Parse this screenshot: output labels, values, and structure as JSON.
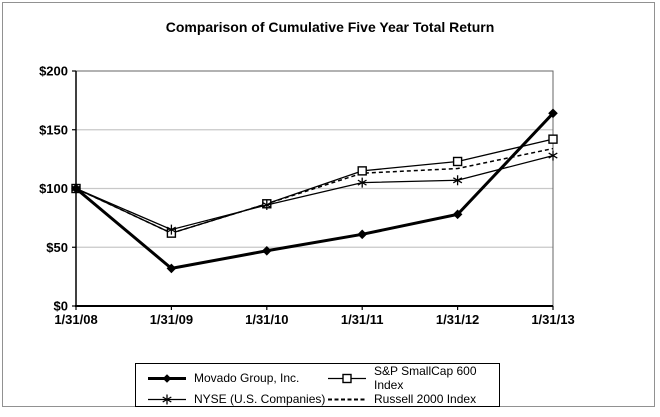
{
  "chart_data": {
    "type": "line",
    "title": "Comparison of Cumulative Five Year Total Return",
    "categories": [
      "1/31/08",
      "1/31/09",
      "1/31/10",
      "1/31/11",
      "1/31/12",
      "1/31/13"
    ],
    "xlabel": "",
    "ylabel": "",
    "ylim": [
      0,
      200
    ],
    "y_ticks": {
      "values": [
        0,
        50,
        100,
        150,
        200
      ],
      "labels": [
        "$0",
        "$50",
        "$100",
        "$150",
        "$200"
      ]
    },
    "grid": "horizontal-light-gray",
    "legend_position": "bottom-boxed",
    "series": [
      {
        "id": "movado",
        "name": "Movado Group, Inc.",
        "marker": "diamond-filled",
        "line": "solid-thick",
        "z": 3,
        "values": [
          100,
          32,
          47,
          61,
          78,
          164
        ]
      },
      {
        "id": "sp-smallcap-600",
        "name": "S&P SmallCap 600 Index",
        "marker": "square-open",
        "line": "solid-thin",
        "z": 1,
        "values": [
          100,
          62,
          87,
          115,
          123,
          142
        ]
      },
      {
        "id": "nyse-us-companies",
        "name": "NYSE (U.S. Companies)",
        "marker": "asterisk",
        "line": "solid-thin",
        "z": 2,
        "values": [
          100,
          65,
          86,
          105,
          107,
          128
        ]
      },
      {
        "id": "russell-2000",
        "name": "Russell 2000 Index",
        "marker": "none",
        "line": "dashed",
        "z": 0,
        "values": [
          100,
          62,
          87,
          113,
          117,
          134
        ]
      }
    ],
    "colors": {
      "series_line": "#000000",
      "gridline": "#c8c8c8",
      "plot_border": "#666666",
      "axis": "#000000",
      "figure_border": "#919191",
      "background": "#ffffff"
    }
  }
}
